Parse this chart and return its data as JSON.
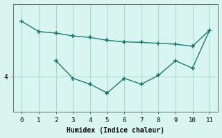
{
  "line1_x": [
    0,
    1,
    2,
    3,
    4,
    5,
    6,
    7,
    8,
    9,
    10,
    11
  ],
  "line1_y": [
    5.9,
    5.55,
    5.5,
    5.4,
    5.35,
    5.25,
    5.2,
    5.18,
    5.15,
    5.12,
    5.05,
    5.6
  ],
  "line2_x": [
    2,
    3,
    4,
    5,
    6,
    7,
    8,
    9,
    10,
    11
  ],
  "line2_y": [
    4.55,
    3.95,
    3.75,
    3.45,
    3.95,
    3.75,
    4.05,
    4.55,
    4.3,
    5.6
  ],
  "line_color": "#1a7a6e",
  "bg_color": "#d8f5f0",
  "grid_color": "#aaddd8",
  "xlabel": "Humidex (Indice chaleur)",
  "ytick_labels": [
    "4"
  ],
  "ytick_positions": [
    4
  ],
  "xlim": [
    -0.5,
    11.5
  ],
  "ylim": [
    2.8,
    6.5
  ],
  "xticks": [
    0,
    1,
    2,
    3,
    4,
    5,
    6,
    7,
    8,
    9,
    10,
    11
  ]
}
